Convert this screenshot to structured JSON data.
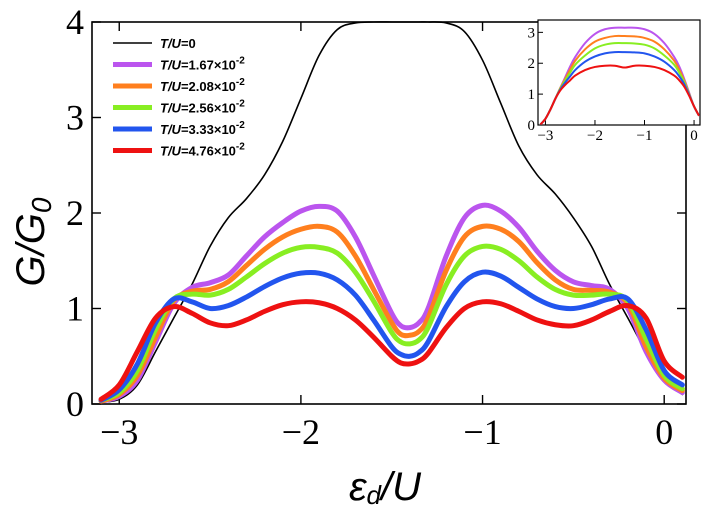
{
  "chart_data": [
    {
      "type": "line",
      "name": "main",
      "xlabel_main": "ε",
      "xlabel_sub": "d",
      "xlabel_tail": "/U",
      "ylabel_main": "G/G",
      "ylabel_sub": "0",
      "xlim": [
        -3.15,
        0.12
      ],
      "ylim": [
        0,
        4
      ],
      "xticks": [
        -3,
        -2,
        -1,
        0
      ],
      "xtick_labels": [
        "−3",
        "−2",
        "−1",
        "0"
      ],
      "yticks": [
        0,
        1,
        2,
        3,
        4
      ],
      "ytick_labels": [
        "0",
        "1",
        "2",
        "3",
        "4"
      ],
      "legend_position": "top-left",
      "x": [
        -3.1,
        -3.0,
        -2.9,
        -2.8,
        -2.7,
        -2.6,
        -2.5,
        -2.4,
        -2.3,
        -2.2,
        -2.1,
        -2.0,
        -1.9,
        -1.8,
        -1.7,
        -1.6,
        -1.5,
        -1.45,
        -1.4,
        -1.35,
        -1.3,
        -1.2,
        -1.1,
        -1.0,
        -0.9,
        -0.8,
        -0.7,
        -0.6,
        -0.5,
        -0.4,
        -0.3,
        -0.2,
        -0.1,
        0.0,
        0.1
      ],
      "series": [
        {
          "name": "T/U=0",
          "label_italic": "T/U",
          "label_rest": "=0",
          "label_exp": "",
          "color": "#000000",
          "width": 1.6,
          "values": [
            0.02,
            0.05,
            0.2,
            0.55,
            0.9,
            1.25,
            1.65,
            1.95,
            2.15,
            2.4,
            2.75,
            3.2,
            3.65,
            3.92,
            3.99,
            4.0,
            4.0,
            4.0,
            4.0,
            4.0,
            4.0,
            3.99,
            3.9,
            3.6,
            3.15,
            2.7,
            2.4,
            2.2,
            1.95,
            1.65,
            1.25,
            0.9,
            0.55,
            0.25,
            0.1
          ]
        },
        {
          "name": "T/U=1.67×10-2",
          "label_italic": "T/U",
          "label_rest": "=1.67×10",
          "label_exp": "-2",
          "color": "#bb55ee",
          "width": 5,
          "values": [
            0.03,
            0.08,
            0.25,
            0.65,
            1.05,
            1.22,
            1.27,
            1.35,
            1.55,
            1.75,
            1.9,
            2.02,
            2.07,
            2.02,
            1.75,
            1.35,
            0.95,
            0.82,
            0.8,
            0.85,
            1.0,
            1.55,
            1.95,
            2.08,
            2.02,
            1.85,
            1.6,
            1.4,
            1.28,
            1.24,
            1.2,
            1.0,
            0.55,
            0.25,
            0.12
          ]
        },
        {
          "name": "T/U=2.08×10-2",
          "label_italic": "T/U",
          "label_rest": "=2.08×10",
          "label_exp": "-2",
          "color": "#ff7f1e",
          "width": 5,
          "values": [
            0.03,
            0.1,
            0.3,
            0.7,
            1.08,
            1.18,
            1.2,
            1.28,
            1.45,
            1.62,
            1.75,
            1.83,
            1.86,
            1.8,
            1.55,
            1.2,
            0.85,
            0.73,
            0.72,
            0.76,
            0.9,
            1.4,
            1.75,
            1.86,
            1.83,
            1.7,
            1.48,
            1.3,
            1.2,
            1.19,
            1.17,
            1.05,
            0.6,
            0.27,
            0.14
          ]
        },
        {
          "name": "T/U=2.56×10-2",
          "label_italic": "T/U",
          "label_rest": "=2.56×10",
          "label_exp": "-2",
          "color": "#88ee22",
          "width": 5,
          "values": [
            0.04,
            0.12,
            0.35,
            0.78,
            1.1,
            1.15,
            1.14,
            1.2,
            1.33,
            1.47,
            1.58,
            1.64,
            1.64,
            1.58,
            1.38,
            1.08,
            0.75,
            0.65,
            0.63,
            0.67,
            0.8,
            1.25,
            1.55,
            1.65,
            1.62,
            1.5,
            1.33,
            1.2,
            1.14,
            1.14,
            1.15,
            1.08,
            0.68,
            0.3,
            0.16
          ]
        },
        {
          "name": "T/U=3.33×10-2",
          "label_italic": "T/U",
          "label_rest": "=3.33×10",
          "label_exp": "-2",
          "color": "#2255ee",
          "width": 5,
          "values": [
            0.04,
            0.15,
            0.42,
            0.85,
            1.1,
            1.07,
            1.0,
            1.03,
            1.12,
            1.23,
            1.32,
            1.37,
            1.37,
            1.3,
            1.14,
            0.88,
            0.6,
            0.52,
            0.5,
            0.54,
            0.65,
            1.02,
            1.28,
            1.38,
            1.34,
            1.22,
            1.1,
            1.02,
            1.0,
            1.04,
            1.1,
            1.1,
            0.78,
            0.35,
            0.2
          ]
        },
        {
          "name": "T/U=4.76×10-2",
          "label_italic": "T/U",
          "label_rest": "=4.76×10",
          "label_exp": "-2",
          "color": "#ee1111",
          "width": 5,
          "values": [
            0.05,
            0.2,
            0.55,
            0.9,
            1.02,
            0.95,
            0.85,
            0.82,
            0.88,
            0.97,
            1.04,
            1.07,
            1.06,
            1.0,
            0.88,
            0.7,
            0.5,
            0.43,
            0.42,
            0.45,
            0.53,
            0.8,
            1.0,
            1.07,
            1.05,
            0.97,
            0.88,
            0.83,
            0.82,
            0.88,
            0.97,
            1.03,
            0.9,
            0.45,
            0.28
          ]
        }
      ]
    },
    {
      "type": "line",
      "name": "inset",
      "xlim": [
        -3.15,
        0.12
      ],
      "ylim": [
        0,
        3.4
      ],
      "xticks": [
        -3,
        -2,
        -1,
        0
      ],
      "xtick_labels": [
        "−3",
        "−2",
        "−1",
        "0"
      ],
      "yticks": [
        0,
        1,
        2,
        3
      ],
      "ytick_labels": [
        "0",
        "1",
        "2",
        "3"
      ],
      "x": [
        -3.1,
        -3.0,
        -2.9,
        -2.8,
        -2.7,
        -2.6,
        -2.5,
        -2.4,
        -2.2,
        -2.0,
        -1.8,
        -1.6,
        -1.4,
        -1.2,
        -1.0,
        -0.8,
        -0.6,
        -0.4,
        -0.3,
        -0.2,
        -0.1,
        0.0,
        0.1
      ],
      "series": [
        {
          "color": "#bb55ee",
          "values": [
            0.02,
            0.2,
            0.5,
            0.85,
            1.2,
            1.55,
            1.9,
            2.2,
            2.65,
            2.95,
            3.1,
            3.15,
            3.15,
            3.15,
            3.1,
            2.95,
            2.65,
            2.2,
            1.9,
            1.5,
            1.05,
            0.6,
            0.3
          ]
        },
        {
          "color": "#ff7f1e",
          "values": [
            0.02,
            0.2,
            0.5,
            0.85,
            1.2,
            1.5,
            1.8,
            2.08,
            2.45,
            2.7,
            2.82,
            2.88,
            2.88,
            2.87,
            2.82,
            2.7,
            2.45,
            2.08,
            1.8,
            1.45,
            1.02,
            0.6,
            0.3
          ]
        },
        {
          "color": "#88ee22",
          "values": [
            0.02,
            0.2,
            0.5,
            0.85,
            1.18,
            1.45,
            1.7,
            1.95,
            2.25,
            2.48,
            2.6,
            2.65,
            2.65,
            2.64,
            2.6,
            2.48,
            2.25,
            1.95,
            1.7,
            1.4,
            1.0,
            0.6,
            0.3
          ]
        },
        {
          "color": "#2255ee",
          "values": [
            0.02,
            0.2,
            0.5,
            0.85,
            1.15,
            1.38,
            1.58,
            1.78,
            2.05,
            2.22,
            2.32,
            2.36,
            2.36,
            2.35,
            2.32,
            2.22,
            2.05,
            1.78,
            1.58,
            1.33,
            0.98,
            0.6,
            0.3
          ]
        },
        {
          "color": "#ee1111",
          "values": [
            0.02,
            0.2,
            0.5,
            0.85,
            1.12,
            1.3,
            1.45,
            1.6,
            1.78,
            1.88,
            1.92,
            1.92,
            1.86,
            1.92,
            1.92,
            1.88,
            1.78,
            1.6,
            1.45,
            1.25,
            0.95,
            0.6,
            0.3
          ]
        }
      ]
    }
  ]
}
